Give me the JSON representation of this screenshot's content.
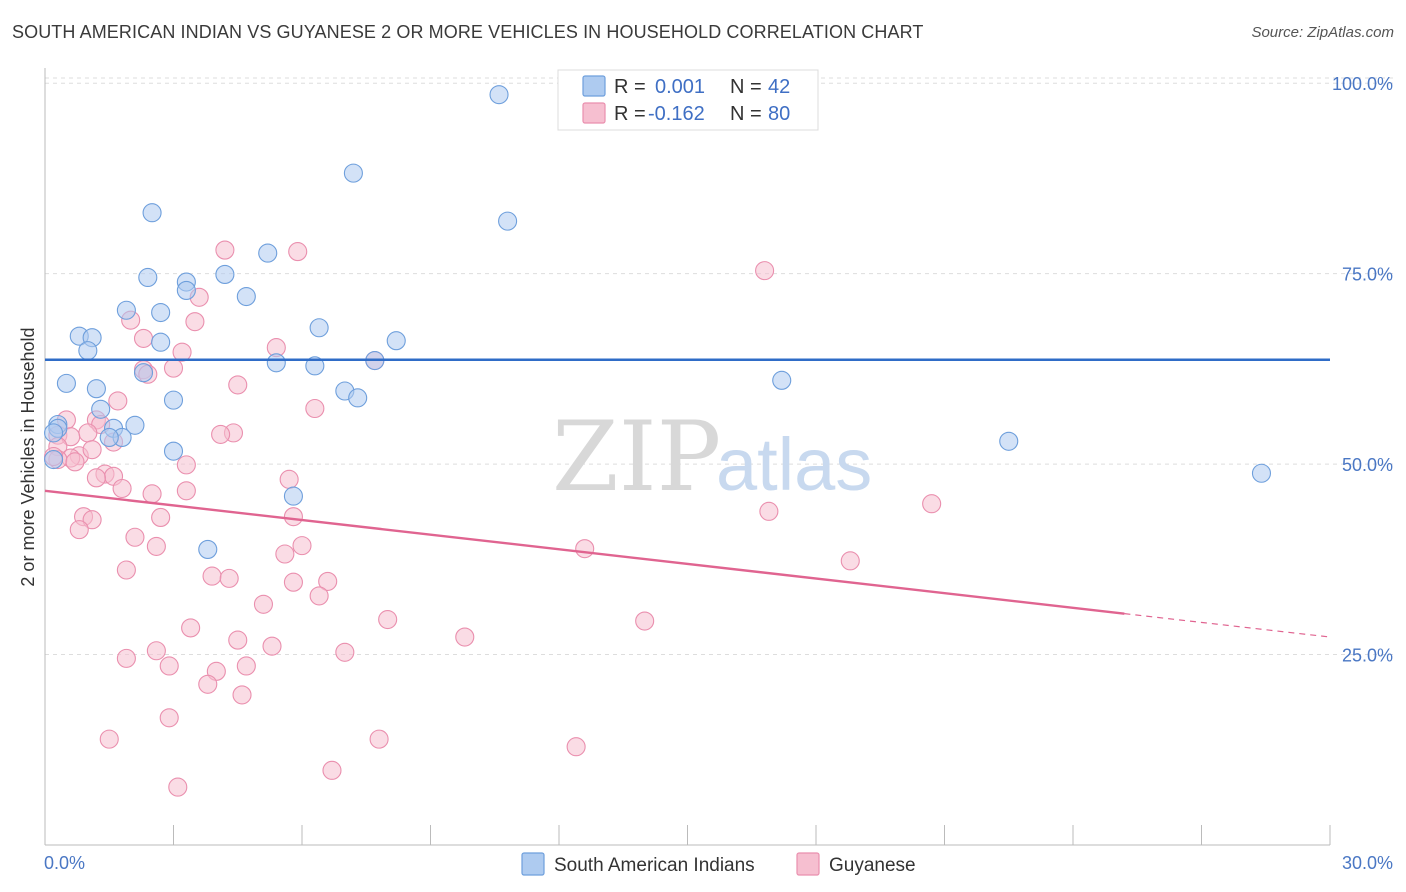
{
  "title": "SOUTH AMERICAN INDIAN VS GUYANESE 2 OR MORE VEHICLES IN HOUSEHOLD CORRELATION CHART",
  "source": "Source: ZipAtlas.com",
  "watermark": {
    "zip": "ZIP",
    "atlas": "atlas"
  },
  "legend": {
    "r_label": "R =",
    "n_label": "N =",
    "rows": [
      {
        "r": "0.001",
        "n": "42"
      },
      {
        "r": "-0.162",
        "n": "80"
      }
    ]
  },
  "colors": {
    "blue_fill": "#aecbf0",
    "blue_stroke": "#6e9fdc",
    "blue_line": "#2f6cc7",
    "pink_fill": "#f6bfd0",
    "pink_stroke": "#ea8fae",
    "pink_line": "#e06490",
    "grid": "#dddddd"
  },
  "chart_data": {
    "type": "scatter",
    "title": "SOUTH AMERICAN INDIAN VS GUYANESE 2 OR MORE VEHICLES IN HOUSEHOLD CORRELATION CHART",
    "xlabel": "",
    "ylabel": "2 or more Vehicles in Household",
    "xlim": [
      0,
      30
    ],
    "ylim": [
      0,
      102
    ],
    "x_tick_labels": [
      "0.0%",
      "30.0%"
    ],
    "y_ticks": [
      25,
      50,
      75,
      100
    ],
    "y_tick_labels": [
      "25.0%",
      "50.0%",
      "75.0%",
      "100.0%"
    ],
    "grid": true,
    "legend_position": "top-center",
    "series": [
      {
        "name": "South American Indians",
        "color": "#aecbf0",
        "trend": {
          "x": [
            0,
            30
          ],
          "y": [
            63.7,
            63.7
          ],
          "solid_until": 30
        },
        "points": [
          [
            10.6,
            98.5
          ],
          [
            7.2,
            88.2
          ],
          [
            2.5,
            83.0
          ],
          [
            10.8,
            81.9
          ],
          [
            5.2,
            77.7
          ],
          [
            2.4,
            74.5
          ],
          [
            4.2,
            74.9
          ],
          [
            3.3,
            73.9
          ],
          [
            3.3,
            72.8
          ],
          [
            4.7,
            72.0
          ],
          [
            1.9,
            70.2
          ],
          [
            2.7,
            69.9
          ],
          [
            6.4,
            67.9
          ],
          [
            0.8,
            66.8
          ],
          [
            1.1,
            66.6
          ],
          [
            8.2,
            66.2
          ],
          [
            2.7,
            66.0
          ],
          [
            1.0,
            64.9
          ],
          [
            5.4,
            63.3
          ],
          [
            6.3,
            62.9
          ],
          [
            7.7,
            63.6
          ],
          [
            2.3,
            62.0
          ],
          [
            17.2,
            61.0
          ],
          [
            0.5,
            60.6
          ],
          [
            1.2,
            59.9
          ],
          [
            7.0,
            59.6
          ],
          [
            7.3,
            58.7
          ],
          [
            3.0,
            58.4
          ],
          [
            1.3,
            57.2
          ],
          [
            0.3,
            55.2
          ],
          [
            0.3,
            54.7
          ],
          [
            1.6,
            54.7
          ],
          [
            2.1,
            55.1
          ],
          [
            1.8,
            53.5
          ],
          [
            1.5,
            53.5
          ],
          [
            0.2,
            54.1
          ],
          [
            22.5,
            53.0
          ],
          [
            3.0,
            51.7
          ],
          [
            0.2,
            50.6
          ],
          [
            28.4,
            48.8
          ],
          [
            5.8,
            45.8
          ],
          [
            3.8,
            38.8
          ]
        ]
      },
      {
        "name": "Guyanese",
        "color": "#f6bfd0",
        "trend": {
          "x": [
            0,
            30
          ],
          "y": [
            46.5,
            27.3
          ],
          "solid_until": 25.2
        },
        "points": [
          [
            4.2,
            78.1
          ],
          [
            5.9,
            77.9
          ],
          [
            16.8,
            75.4
          ],
          [
            3.6,
            71.9
          ],
          [
            2.0,
            68.9
          ],
          [
            3.5,
            68.7
          ],
          [
            2.3,
            66.5
          ],
          [
            5.4,
            65.3
          ],
          [
            3.2,
            64.7
          ],
          [
            7.7,
            63.6
          ],
          [
            3.0,
            62.6
          ],
          [
            2.3,
            62.4
          ],
          [
            2.4,
            61.8
          ],
          [
            4.5,
            60.4
          ],
          [
            1.7,
            58.3
          ],
          [
            6.3,
            57.3
          ],
          [
            0.5,
            55.8
          ],
          [
            1.2,
            55.8
          ],
          [
            1.3,
            55.2
          ],
          [
            1.0,
            54.1
          ],
          [
            4.4,
            54.1
          ],
          [
            4.1,
            53.9
          ],
          [
            0.3,
            53.8
          ],
          [
            0.6,
            53.6
          ],
          [
            1.6,
            52.9
          ],
          [
            0.3,
            52.3
          ],
          [
            0.8,
            51.1
          ],
          [
            0.6,
            50.8
          ],
          [
            0.3,
            50.6
          ],
          [
            3.3,
            49.9
          ],
          [
            1.4,
            48.7
          ],
          [
            1.6,
            48.4
          ],
          [
            1.2,
            48.2
          ],
          [
            5.7,
            48.0
          ],
          [
            1.8,
            46.8
          ],
          [
            3.3,
            46.5
          ],
          [
            2.5,
            46.1
          ],
          [
            20.7,
            44.8
          ],
          [
            16.9,
            43.8
          ],
          [
            0.9,
            43.1
          ],
          [
            5.8,
            43.1
          ],
          [
            1.1,
            42.7
          ],
          [
            2.7,
            43.0
          ],
          [
            0.8,
            41.4
          ],
          [
            2.1,
            40.4
          ],
          [
            6.0,
            39.3
          ],
          [
            2.6,
            39.2
          ],
          [
            12.6,
            38.9
          ],
          [
            5.6,
            38.2
          ],
          [
            18.8,
            37.3
          ],
          [
            1.9,
            36.1
          ],
          [
            3.9,
            35.3
          ],
          [
            4.3,
            35.0
          ],
          [
            5.8,
            34.5
          ],
          [
            6.6,
            34.6
          ],
          [
            6.4,
            32.7
          ],
          [
            5.1,
            31.6
          ],
          [
            8.0,
            29.6
          ],
          [
            14.0,
            29.4
          ],
          [
            3.4,
            28.5
          ],
          [
            9.8,
            27.3
          ],
          [
            4.5,
            26.9
          ],
          [
            5.3,
            26.1
          ],
          [
            2.6,
            25.5
          ],
          [
            7.0,
            25.3
          ],
          [
            1.9,
            24.5
          ],
          [
            2.9,
            23.5
          ],
          [
            4.7,
            23.5
          ],
          [
            4.0,
            22.8
          ],
          [
            3.8,
            21.1
          ],
          [
            4.6,
            19.7
          ],
          [
            2.9,
            16.7
          ],
          [
            1.5,
            13.9
          ],
          [
            7.8,
            13.9
          ],
          [
            12.4,
            12.9
          ],
          [
            6.7,
            9.8
          ],
          [
            3.1,
            7.6
          ],
          [
            0.7,
            50.3
          ],
          [
            1.1,
            51.9
          ],
          [
            0.2,
            51.0
          ]
        ]
      }
    ]
  }
}
